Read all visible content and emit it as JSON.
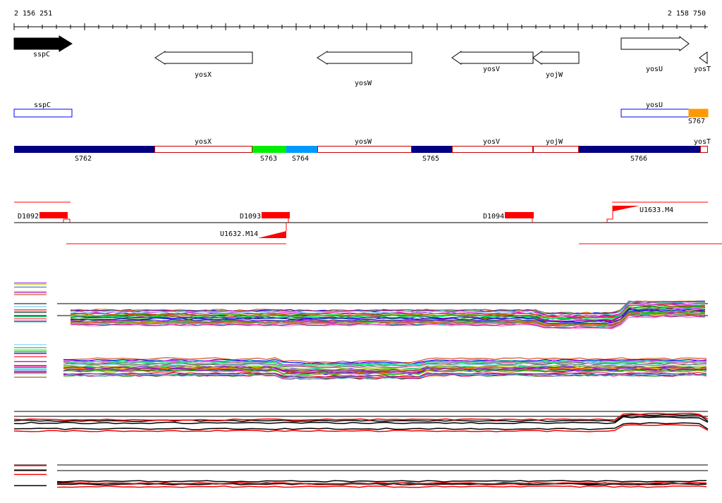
{
  "ruler": {
    "start_label": "2 156 251",
    "end_label": "2 158 750"
  },
  "colors": {
    "line": "#000000",
    "gene_outline": "#000000",
    "region_outline": "#cc0000",
    "region_fill_dark": "#000080",
    "region_green": "#00ee00",
    "region_blue": "#0099ff",
    "orange": "#ff9900",
    "red": "#ff0000",
    "annot_blue": "#0000ff"
  },
  "genes": [
    {
      "label": "sspC",
      "strand": "+",
      "style": "filled"
    },
    {
      "label": "yosX",
      "strand": "-",
      "style": "outline"
    },
    {
      "label": "yosW",
      "strand": "-",
      "style": "outline"
    },
    {
      "label": "yosV",
      "strand": "-",
      "style": "outline"
    },
    {
      "label": "yojW",
      "strand": "-",
      "style": "outline"
    },
    {
      "label": "yosU",
      "strand": "+",
      "style": "outline"
    },
    {
      "label": "yosT",
      "strand": "-",
      "style": "outline"
    }
  ],
  "annotations": [
    {
      "label": "sspC"
    },
    {
      "label": "yosU"
    },
    {
      "label": "S767"
    }
  ],
  "segments": [
    {
      "id": "S762",
      "type": "S"
    },
    {
      "id": "yosX",
      "type": "gene"
    },
    {
      "id": "S763",
      "type": "S"
    },
    {
      "id": "S764",
      "type": "S"
    },
    {
      "id": "yosW",
      "type": "gene"
    },
    {
      "id": "S765",
      "type": "S"
    },
    {
      "id": "yosV",
      "type": "gene"
    },
    {
      "id": "yojW",
      "type": "gene"
    },
    {
      "id": "S766",
      "type": "S"
    },
    {
      "id": "yosT",
      "type": "gene"
    }
  ],
  "features": [
    {
      "label": "D1092"
    },
    {
      "label": "D1093"
    },
    {
      "label": "D1094"
    },
    {
      "label": "U1633.M4"
    },
    {
      "label": "U1632.M14"
    }
  ],
  "expression_panels": [
    {
      "name": "upper-profiles",
      "series_count": 34
    },
    {
      "name": "lower-profiles",
      "series_count": 34
    },
    {
      "name": "summary-a",
      "series_count": 5
    },
    {
      "name": "summary-b",
      "series_count": 5
    }
  ]
}
